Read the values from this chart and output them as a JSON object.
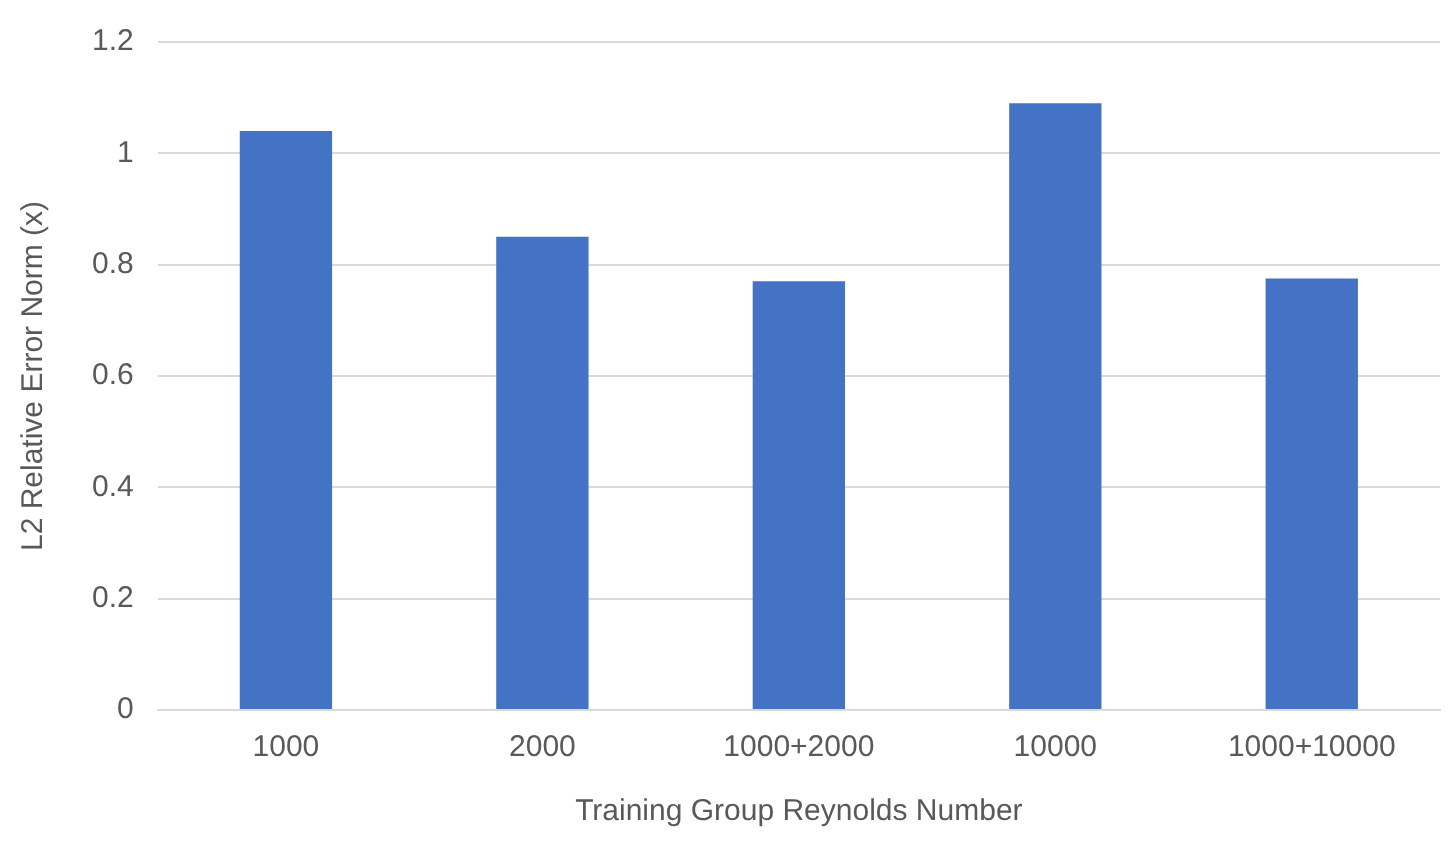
{
  "chart_data": {
    "type": "bar",
    "xlabel": "Training Group Reynolds Number",
    "ylabel": "L2 Relative Error Norm (x)",
    "categories": [
      "1000",
      "2000",
      "1000+2000",
      "10000",
      "1000+10000"
    ],
    "values": [
      1.04,
      0.85,
      0.77,
      1.09,
      0.775
    ],
    "color": "#4472c4",
    "ylim": [
      0,
      1.2
    ],
    "yticks": [
      0,
      0.2,
      0.4,
      0.6,
      0.8,
      1,
      1.2
    ],
    "grid": "y",
    "legend": false
  }
}
